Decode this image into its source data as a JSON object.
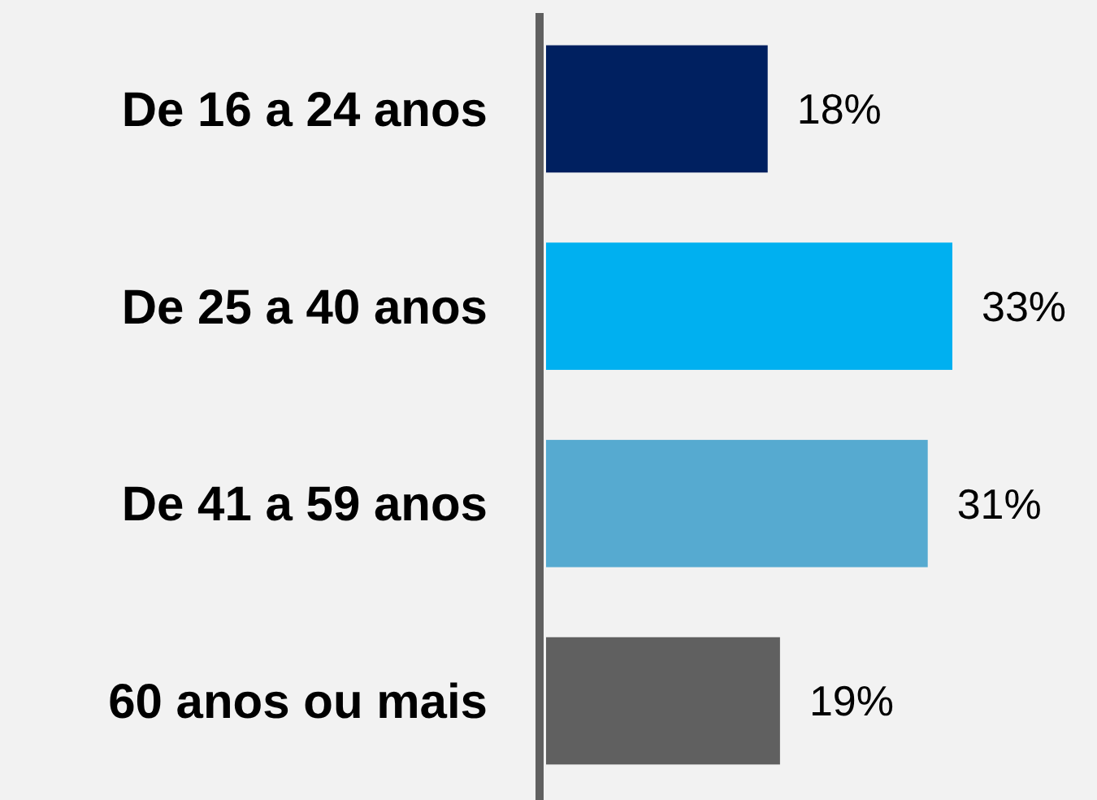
{
  "chart_data": {
    "type": "bar",
    "orientation": "horizontal",
    "categories": [
      "De 16 a 24 anos",
      "De 25 a 40 anos",
      "De 41 a 59 anos",
      "60 anos ou mais"
    ],
    "values": [
      18,
      33,
      31,
      19
    ],
    "colors": [
      "#002060",
      "#00b0f0",
      "#56aad0",
      "#606060"
    ],
    "value_labels": [
      "18%",
      "33%",
      "31%",
      "19%"
    ]
  }
}
